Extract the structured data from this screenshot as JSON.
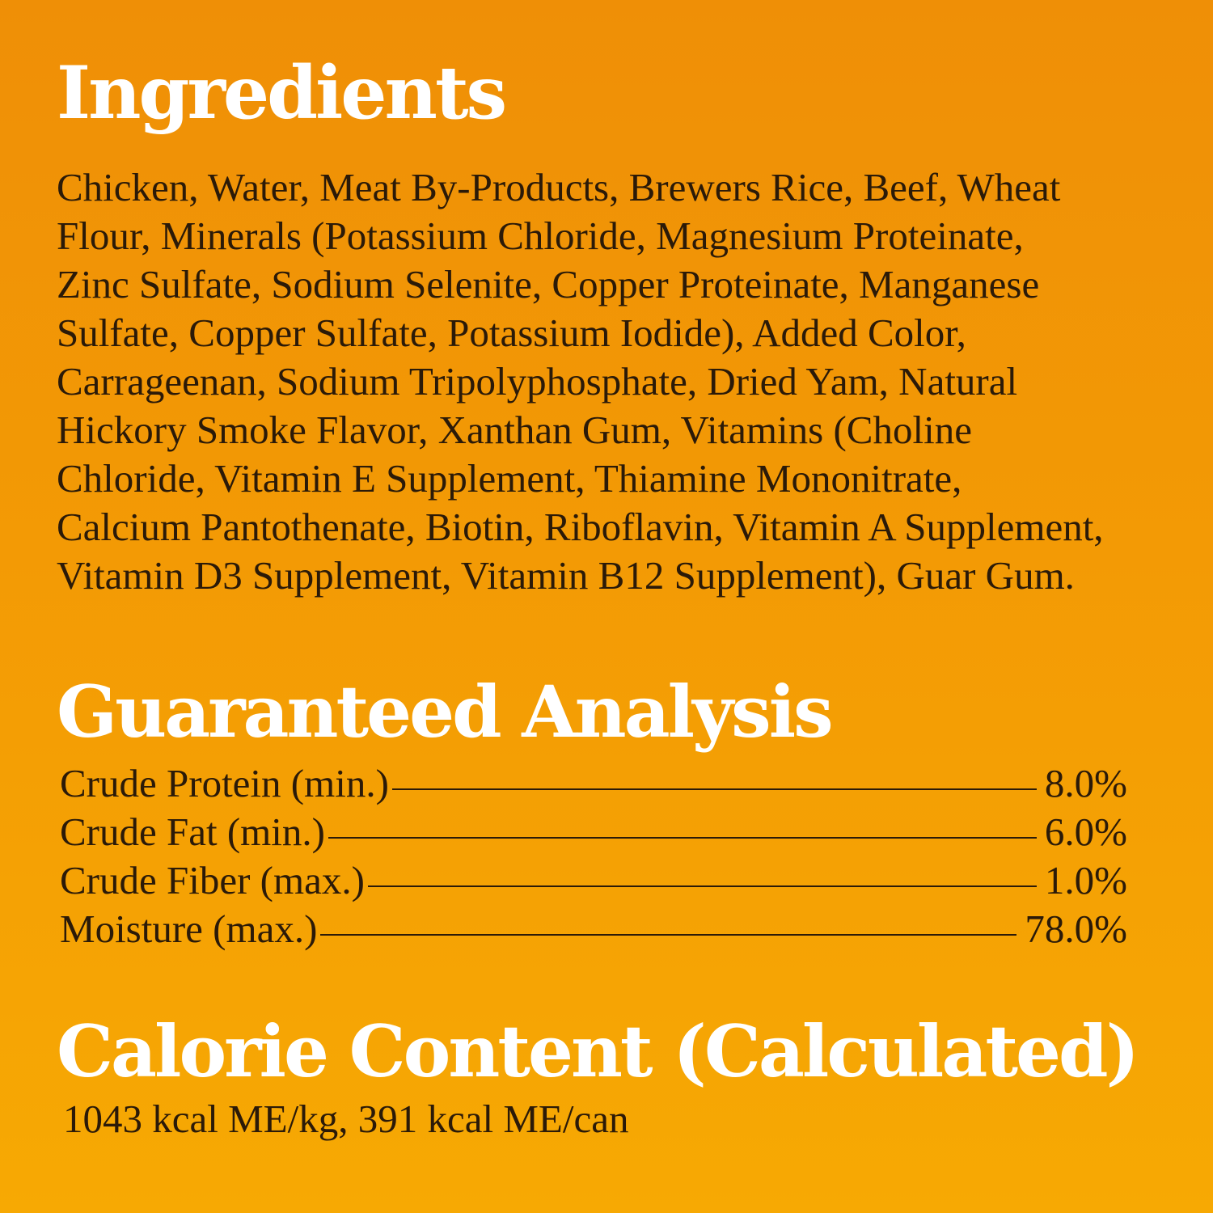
{
  "ingredients": {
    "title": "Ingredients",
    "lines": [
      "Chicken, Water, Meat By-Products, Brewers Rice, Beef, Wheat",
      "Flour, Minerals (Potassium Chloride, Magnesium Proteinate,",
      "Zinc Sulfate, Sodium Selenite, Copper Proteinate, Manganese",
      "Sulfate, Copper Sulfate, Potassium Iodide), Added Color,",
      "Carrageenan, Sodium Tripolyphosphate, Dried Yam, Natural",
      "Hickory Smoke Flavor, Xanthan Gum, Vitamins (Choline",
      "Chloride, Vitamin E Supplement, Thiamine Mononitrate,",
      "Calcium Pantothenate, Biotin, Riboflavin, Vitamin A Supplement,",
      "Vitamin D3 Supplement, Vitamin B12 Supplement), Guar Gum."
    ]
  },
  "analysis": {
    "title": "Guaranteed Analysis",
    "rows": [
      {
        "label": "Crude Protein (min.)",
        "value": "8.0%"
      },
      {
        "label": "Crude Fat (min.)",
        "value": "6.0%"
      },
      {
        "label": "Crude Fiber (max.)",
        "value": "1.0%"
      },
      {
        "label": "Moisture (max.)",
        "value": "78.0%"
      }
    ]
  },
  "calorie": {
    "title": "Calorie Content (Calculated)",
    "text": "1043 kcal ME/kg, 391 kcal ME/can"
  },
  "colors": {
    "background_top": "#ef8f06",
    "background_bottom": "#f7a903",
    "heading": "#ffffff",
    "text": "#2b1a08"
  }
}
